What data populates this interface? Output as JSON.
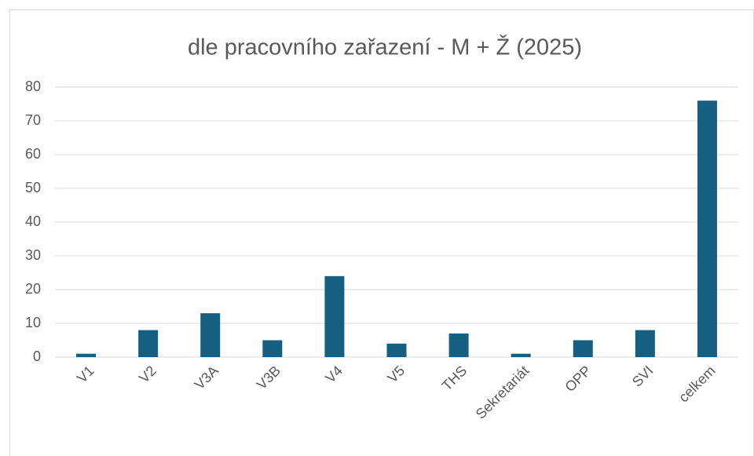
{
  "chart_data": {
    "type": "bar",
    "title": "dle pracovního zařazení - M + Ž (2025)",
    "categories": [
      "V1",
      "V2",
      "V3A",
      "V3B",
      "V4",
      "V5",
      "THS",
      "Sekretariát",
      "OPP",
      "SVI",
      "celkem"
    ],
    "values": [
      1,
      8,
      13,
      5,
      24,
      4,
      7,
      1,
      5,
      8,
      76
    ],
    "color": "#156082",
    "ylim": [
      0,
      80
    ],
    "yticks": [
      0,
      10,
      20,
      30,
      40,
      50,
      60,
      70,
      80
    ],
    "grid": true
  }
}
